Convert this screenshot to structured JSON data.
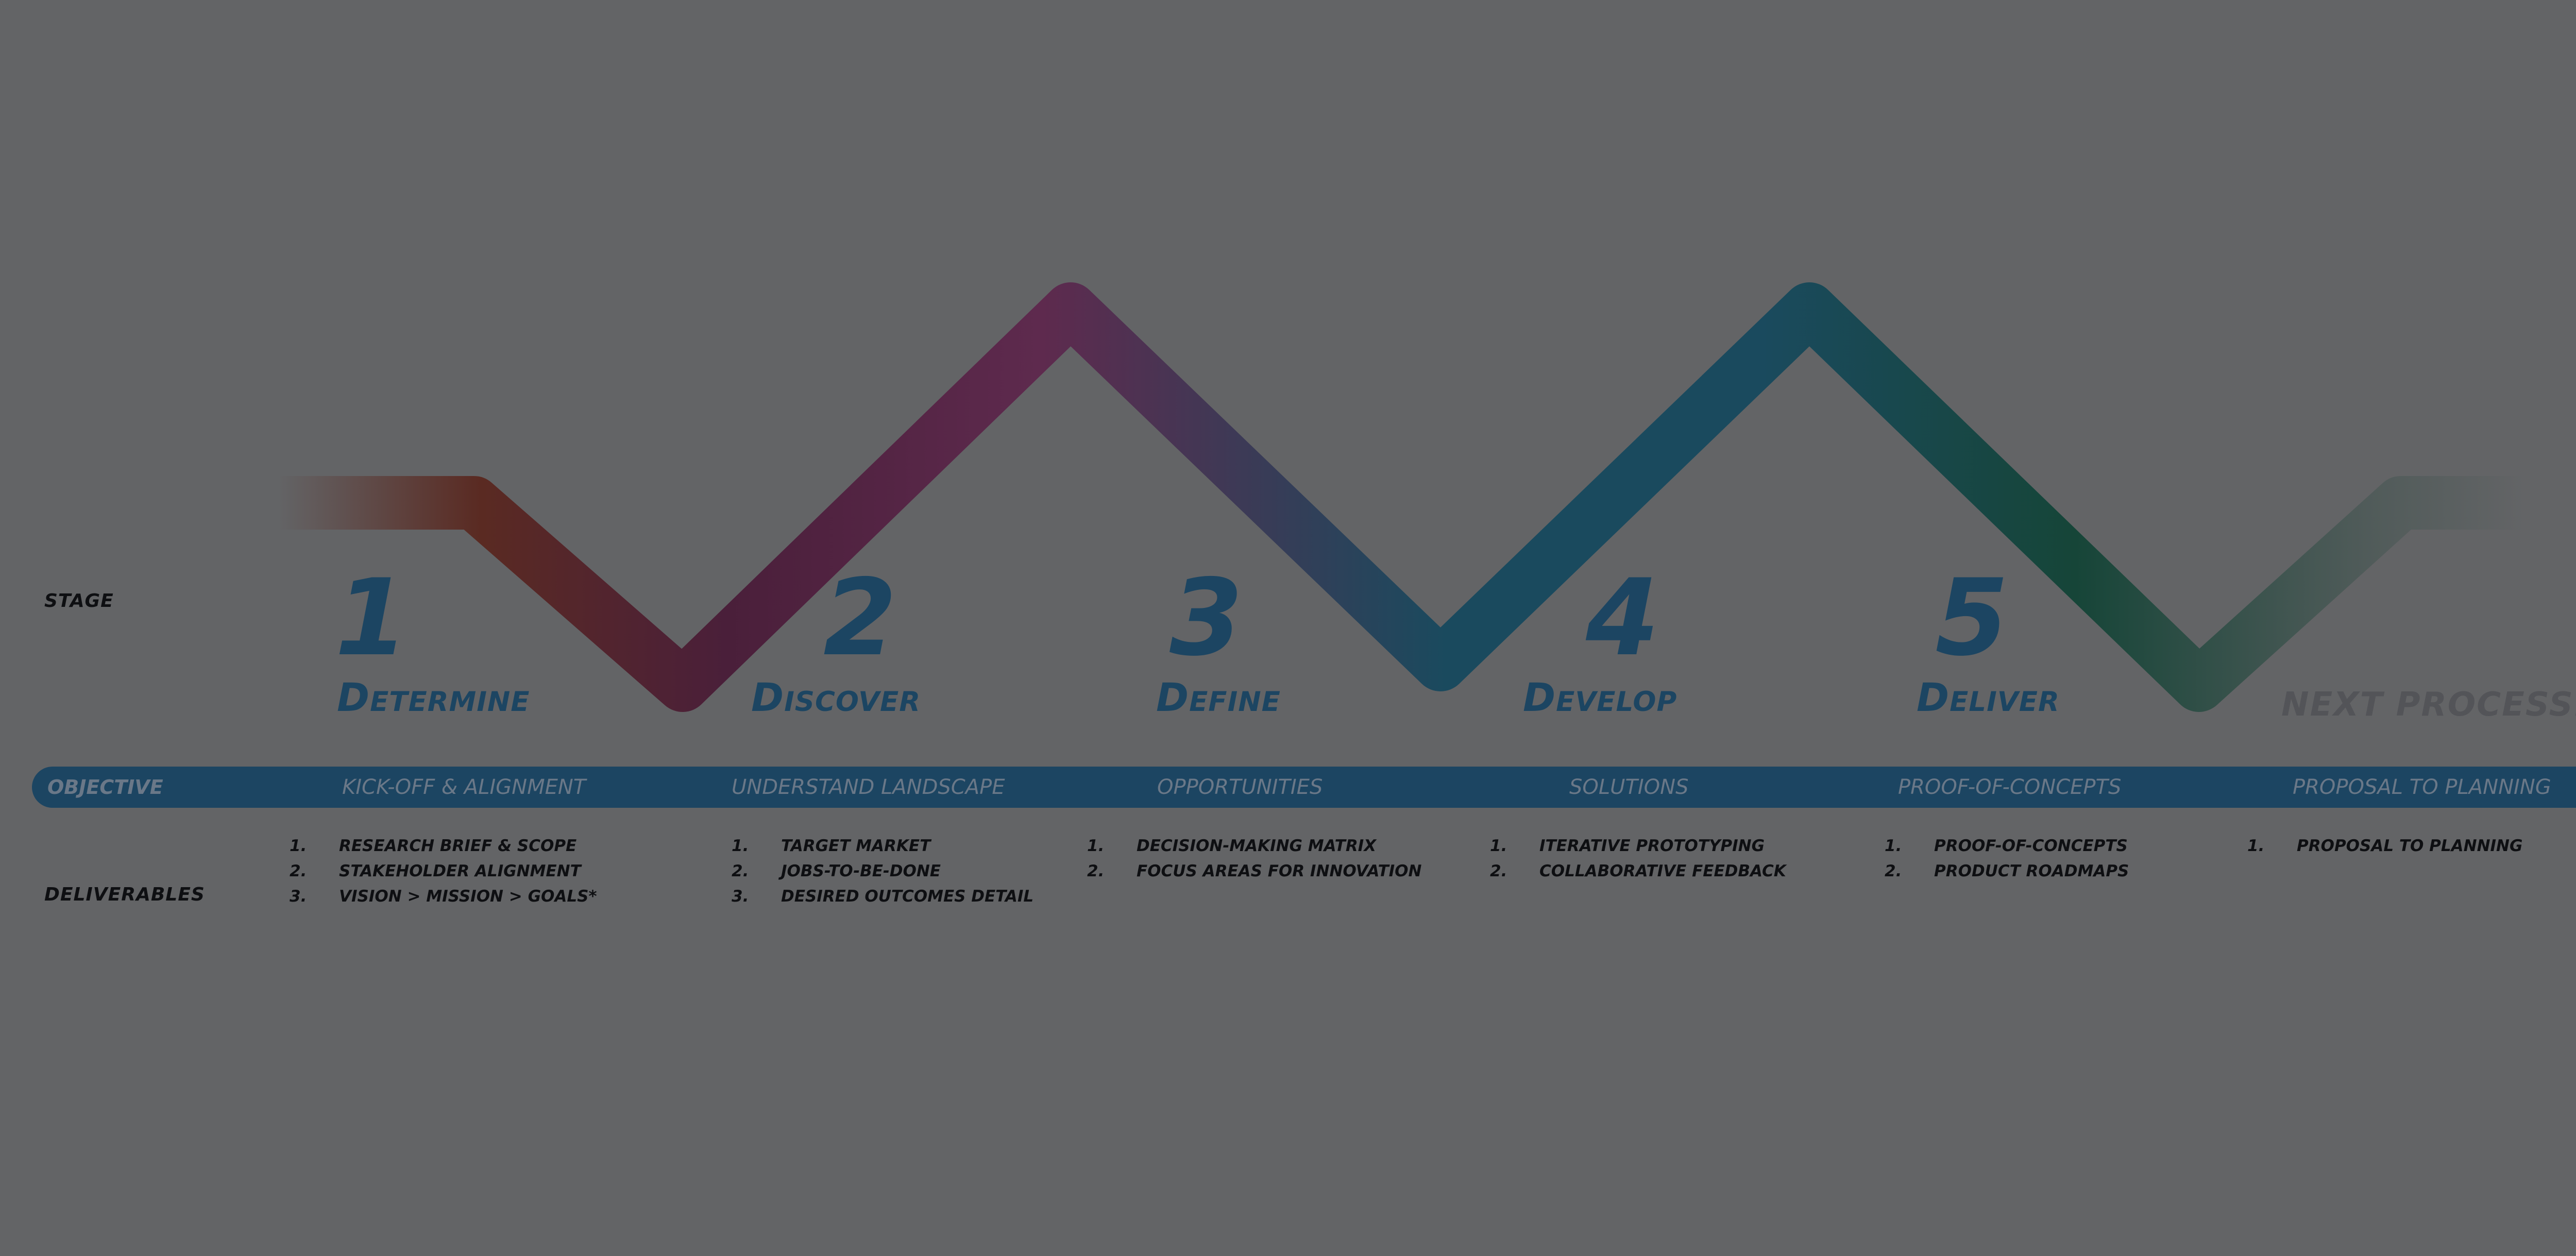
{
  "labels": {
    "stage": "STAGE",
    "deliverables": "DELIVERABLES"
  },
  "objective": {
    "label": "OBJECTIVE",
    "items": [
      "KICK-OFF & ALIGNMENT",
      "UNDERSTAND LANDSCAPE",
      "OPPORTUNITIES",
      "SOLUTIONS",
      "PROOF-OF-CONCEPTS",
      "PROPOSAL TO PLANNING"
    ]
  },
  "stages": [
    {
      "number": "1",
      "name": "Determine",
      "deliverables": [
        {
          "num": "1.",
          "text": "RESEARCH BRIEF & SCOPE"
        },
        {
          "num": "2.",
          "text": "STAKEHOLDER ALIGNMENT"
        },
        {
          "num": "3.",
          "text": "VISION > MISSION > GOALS*"
        }
      ]
    },
    {
      "number": "2",
      "name": "Discover",
      "deliverables": [
        {
          "num": "1.",
          "text": "TARGET MARKET"
        },
        {
          "num": "2.",
          "text": "JOBS-TO-BE-DONE"
        },
        {
          "num": "3.",
          "text": "DESIRED OUTCOMES DETAIL"
        }
      ]
    },
    {
      "number": "3",
      "name": "Define",
      "deliverables": [
        {
          "num": "1.",
          "text": "DECISION-MAKING MATRIX"
        },
        {
          "num": "2.",
          "text": "FOCUS AREAS FOR INNOVATION"
        }
      ]
    },
    {
      "number": "4",
      "name": "Develop",
      "deliverables": [
        {
          "num": "1.",
          "text": "ITERATIVE PROTOTYPING"
        },
        {
          "num": "2.",
          "text": "COLLABORATIVE FEEDBACK"
        }
      ]
    },
    {
      "number": "5",
      "name": "Deliver",
      "deliverables": [
        {
          "num": "1.",
          "text": "PROOF-OF-CONCEPTS"
        },
        {
          "num": "2.",
          "text": "PRODUCT ROADMAPS"
        }
      ]
    }
  ],
  "next": {
    "name": "NEXT PROCESS...",
    "deliverables": [
      {
        "num": "1.",
        "text": "PROPOSAL TO PLANNING"
      }
    ]
  },
  "colors": {
    "background": "#636466",
    "primary": "#1c4562",
    "text": "#0e0f12",
    "stage1": "#5a2a22",
    "stage2": "#4a1f3a",
    "stage3": "#5e2a4e",
    "stage4": "#1a4a5e",
    "stage5": "#164538",
    "next": "#4e5a58"
  }
}
